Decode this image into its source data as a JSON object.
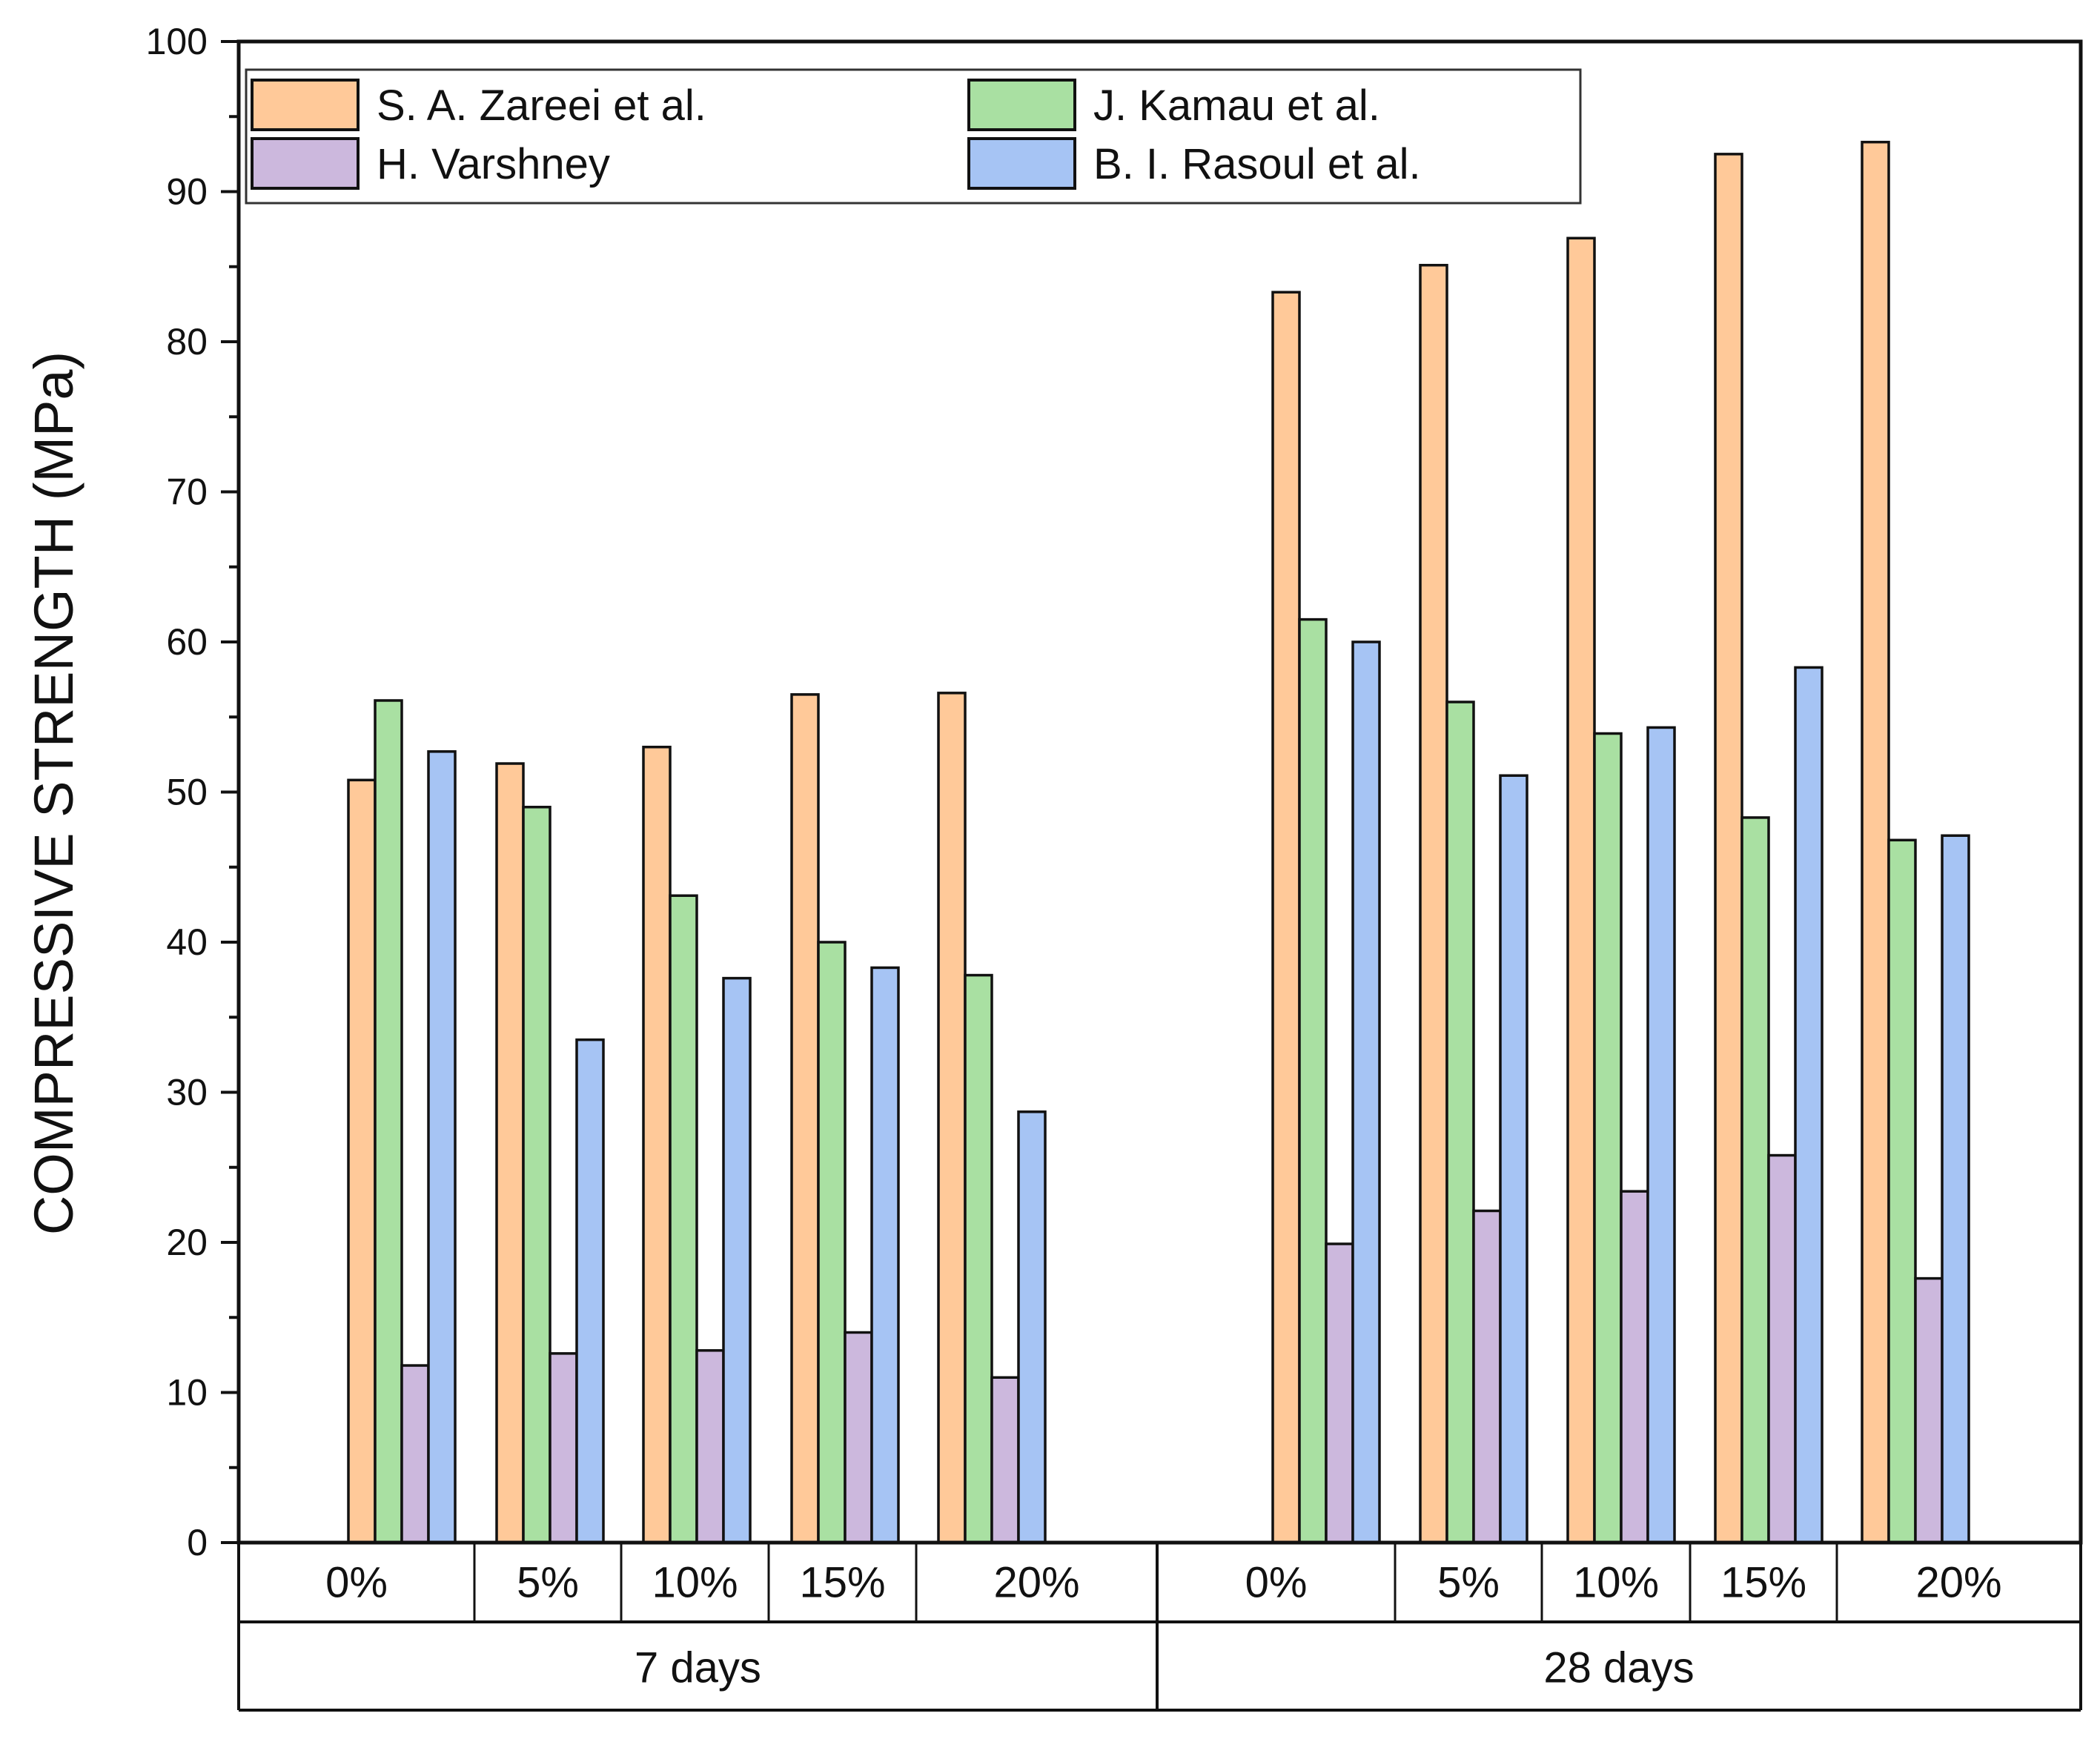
{
  "chart_data": {
    "type": "bar",
    "title": "",
    "ylabel": "COMPRESSIVE STRENGTH (MPa)",
    "xlabel": "",
    "ylim": [
      0,
      100
    ],
    "yticks": [
      0,
      10,
      20,
      30,
      40,
      50,
      60,
      70,
      80,
      90,
      100
    ],
    "groups": [
      {
        "label": "7 days",
        "categories": [
          "0%",
          "5%",
          "10%",
          "15%",
          "20%"
        ]
      },
      {
        "label": "28 days",
        "categories": [
          "0%",
          "5%",
          "10%",
          "15%",
          "20%"
        ]
      }
    ],
    "series": [
      {
        "name": "S. A. Zareei et al.",
        "color": "#FFC999",
        "values": [
          50.8,
          51.9,
          53.0,
          56.5,
          56.6,
          83.3,
          85.1,
          86.9,
          92.5,
          93.3
        ]
      },
      {
        "name": "J. Kamau et al.",
        "color": "#A9E0A2",
        "values": [
          56.1,
          49.0,
          43.1,
          40.0,
          37.8,
          61.5,
          56.0,
          53.9,
          48.3,
          46.8
        ]
      },
      {
        "name": "H. Varshney",
        "color": "#CCB8DD",
        "values": [
          11.8,
          12.6,
          12.8,
          14.0,
          11.0,
          19.9,
          22.1,
          23.4,
          25.8,
          17.6
        ]
      },
      {
        "name": "B. I. Rasoul et al.",
        "color": "#A6C4F4",
        "values": [
          52.7,
          33.5,
          37.6,
          38.3,
          28.7,
          60.0,
          51.1,
          54.3,
          58.3,
          47.1
        ]
      }
    ],
    "legend": {
      "position": "top-left",
      "columns": 2,
      "order": [
        0,
        1,
        2,
        3
      ]
    },
    "grid": false
  }
}
